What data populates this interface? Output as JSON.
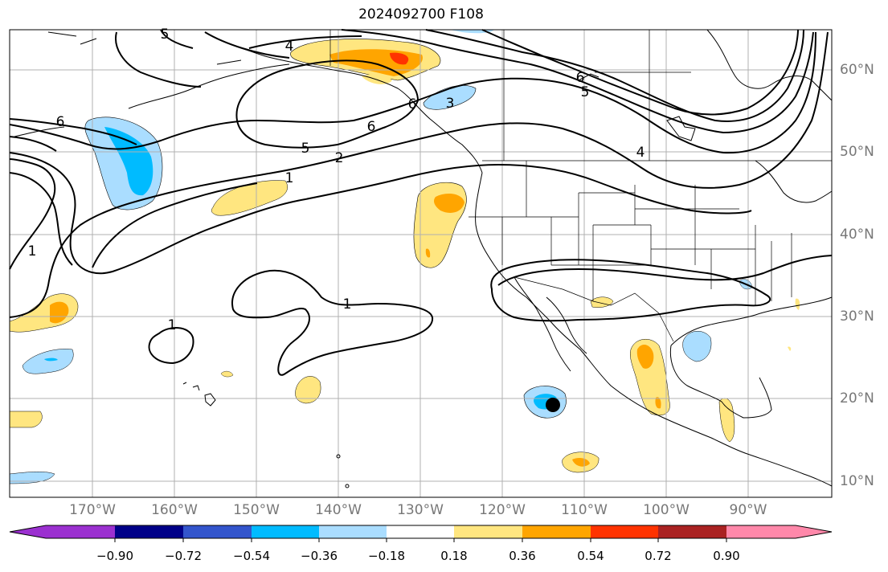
{
  "title": "2024092700 F108",
  "longitude_labels": [
    "170°W",
    "160°W",
    "150°W",
    "140°W",
    "130°W",
    "120°W",
    "110°W",
    "100°W",
    "90°W"
  ],
  "latitude_labels": [
    "60°N",
    "50°N",
    "40°N",
    "30°N",
    "20°N",
    "10°N"
  ],
  "contour_labels": [
    "4",
    "5",
    "6",
    "6",
    "3",
    "5",
    "2",
    "1",
    "6",
    "1",
    "1",
    "1",
    "4",
    "5",
    "6"
  ],
  "colorbar": {
    "tick_labels": [
      "−0.90",
      "−0.72",
      "−0.54",
      "−0.36",
      "−0.18",
      "0.18",
      "0.36",
      "0.54",
      "0.72",
      "0.90"
    ],
    "colors": [
      "#9b30d0",
      "#000088",
      "#3355cc",
      "#00bbff",
      "#aaddff",
      "#ffffff",
      "#ffe680",
      "#ffa500",
      "#ff3300",
      "#aa2222",
      "#ff88aa"
    ]
  },
  "fill_colors": {
    "light_blue": "#aaddff",
    "blue": "#00bbff",
    "light_yellow": "#ffe680",
    "orange": "#ffa500",
    "red": "#ff3300"
  },
  "marker": "storm-center-dot"
}
